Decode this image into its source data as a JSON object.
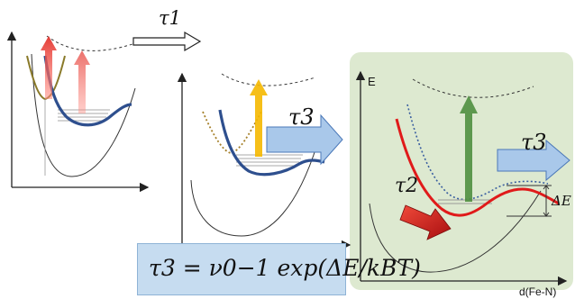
{
  "labels": {
    "tau1": "τ1",
    "tau2": "τ2",
    "tau3_mid": "τ3",
    "tau3_right": "τ3",
    "energy_axis": "E",
    "delta_e": "ΔE",
    "x_axis": "d(Fe-N)"
  },
  "formula": {
    "lhs": "τ3",
    "rhs": "= ν0−1 exp(ΔE/kBT)"
  },
  "colors": {
    "panel_green": "#dde9d0",
    "blue_arrow": "#a9c8ea",
    "blue_curve": "#2e4f8e",
    "red_curve": "#e01a1a",
    "green_arrow": "#4f8f3f",
    "yellow_arrow": "#f5b800",
    "red_arrow": "#e3322b",
    "olive_curve": "#8a7a2a"
  }
}
